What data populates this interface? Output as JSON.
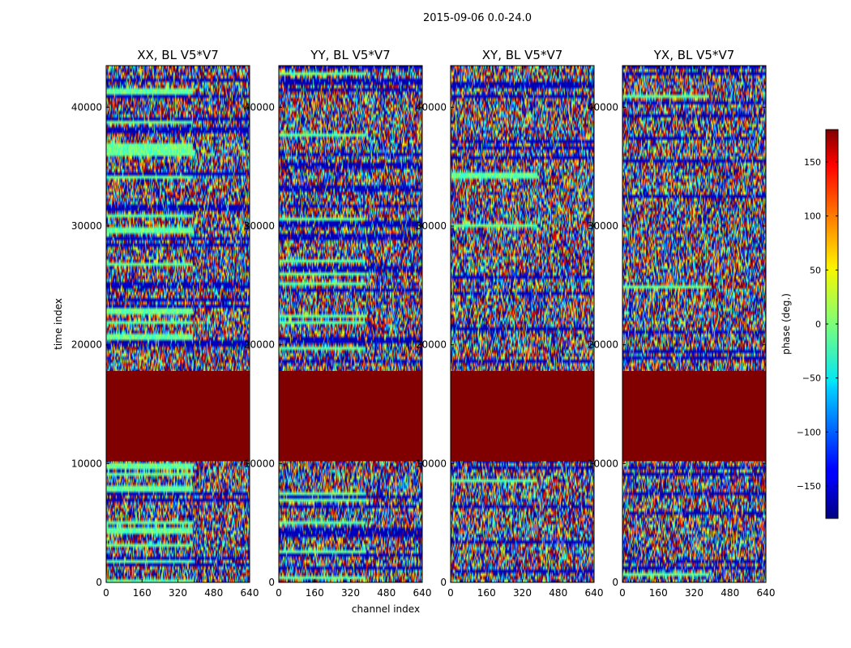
{
  "figure_title": "2015-09-06 0.0-24.0",
  "chart_data": {
    "type": "heatmap",
    "title": "2015-09-06 0.0-24.0",
    "xlabel": "channel index",
    "ylabel": "time index",
    "xlim": [
      0,
      640
    ],
    "ylim": [
      0,
      43500
    ],
    "x_ticks": [
      "0",
      "160",
      "320",
      "480",
      "640"
    ],
    "y_ticks": [
      "0",
      "10000",
      "20000",
      "30000",
      "40000"
    ],
    "colormap": "jet",
    "colorbar": {
      "label": "phase (deg.)",
      "range": [
        -180,
        180
      ],
      "ticks": [
        "150",
        "100",
        "50",
        "0",
        "−50",
        "−100",
        "−150"
      ]
    },
    "flagged_time_range": [
      10200,
      17800
    ],
    "flagged_phase_deg": 180,
    "panels": [
      {
        "title": "XX, BL V5*V7",
        "seed": 11,
        "bias": 0.45
      },
      {
        "title": "YY, BL V5*V7",
        "seed": 23,
        "bias": 0.35
      },
      {
        "title": "XY, BL V5*V7",
        "seed": 37,
        "bias": 0.1
      },
      {
        "title": "YX, BL V5*V7",
        "seed": 53,
        "bias": 0.1
      }
    ]
  }
}
